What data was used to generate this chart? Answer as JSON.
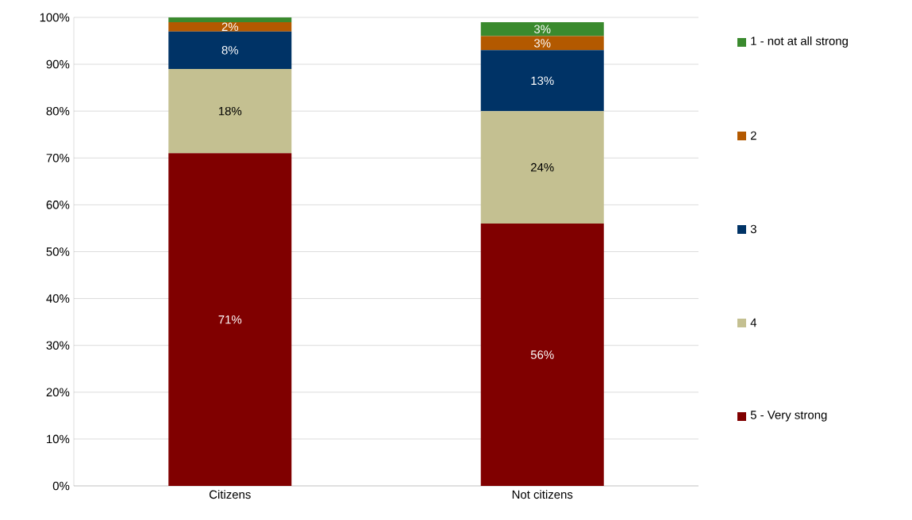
{
  "chart_data": {
    "type": "bar",
    "stacked": true,
    "categories": [
      "Citizens",
      "Not citizens"
    ],
    "series": [
      {
        "name": "5 - Very strong",
        "color": "#800000",
        "values": [
          71,
          56
        ],
        "value_labels": [
          "71%",
          "56%"
        ]
      },
      {
        "name": "4",
        "color": "#c4c091",
        "values": [
          18,
          24
        ],
        "value_labels": [
          "18%",
          "24%"
        ]
      },
      {
        "name": "3",
        "color": "#003366",
        "values": [
          8,
          13
        ],
        "value_labels": [
          "8%",
          "13%"
        ]
      },
      {
        "name": "2",
        "color": "#b35900",
        "values": [
          2,
          3
        ],
        "value_labels": [
          "2%",
          "3%"
        ]
      },
      {
        "name": "1 - not at all strong",
        "color": "#3a8a2e",
        "values": [
          1,
          3
        ],
        "value_labels": [
          null,
          "3%"
        ]
      }
    ],
    "ylim": [
      0,
      100
    ],
    "yticks": [
      {
        "value": 0,
        "label": "0%"
      },
      {
        "value": 10,
        "label": "10%"
      },
      {
        "value": 20,
        "label": "20%"
      },
      {
        "value": 30,
        "label": "30%"
      },
      {
        "value": 40,
        "label": "40%"
      },
      {
        "value": 50,
        "label": "50%"
      },
      {
        "value": 60,
        "label": "60%"
      },
      {
        "value": 70,
        "label": "70%"
      },
      {
        "value": 80,
        "label": "80%"
      },
      {
        "value": 90,
        "label": "90%"
      },
      {
        "value": 100,
        "label": "100%"
      }
    ],
    "grid": "y",
    "legend": "right"
  }
}
